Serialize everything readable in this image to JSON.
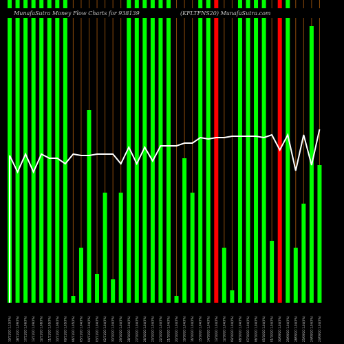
{
  "chart_data": {
    "type": "bar",
    "title_left": "MunafaSutra Money Flow  Charts for 938139",
    "title_right": "(KFLTFNS20)  MunafaSutra.com",
    "colors": {
      "background": "#000000",
      "up": "#00ff00",
      "down": "#ff0000",
      "line": "#ffffff",
      "grid": "#8a4a0a",
      "text": "#c8c8c8"
    },
    "grid": true,
    "ylim": [
      0,
      110
    ],
    "categories": [
      "19/11/20 1.13(0%)",
      "18/11/20 1.09(0%)",
      "17/11/20 1.06(0%)",
      "13/11/20 1.09(0%)",
      "12/11/20 1.08(0%)",
      "11/11/20 1.05(0%)",
      "10/11/20 1.06(0%)",
      "09/11/20 1.05(0%)",
      "06/11/20 1.05(0%)",
      "05/11/20 1.04(0%)",
      "04/11/20 1.04(0%)",
      "03/11/20 1.04(0%)",
      "02/11/20 1.04(0%)",
      "30/10/20 1.04(0%)",
      "29/10/20 1.04(0%)",
      "28/10/20 1.04(0%)",
      "27/10/20 1.04(0%)",
      "26/10/20 1.04(0%)",
      "23/10/20 1.04(0%)",
      "22/10/20 1.04(0%)",
      "21/10/20 1.04(0%)",
      "20/10/20 1.04(0%)",
      "19/10/20 1.04(0%)",
      "16/10/20 1.04(0%)",
      "15/10/20 1.04(0%)",
      "14/10/20 1.04(0%)",
      "13/10/20 1.04(0%)",
      "12/10/20 1.04(0%)",
      "09/10/20 1.04(0%)",
      "08/10/20 1.04(0%)",
      "07/10/20 1.04(0%)",
      "06/10/20 1.04(0%)",
      "05/10/20 1.04(0%)",
      "01/10/20 1.04(0%)",
      "30/09/20 1.04(0%)",
      "29/09/20 1.04(0%)",
      "28/09/20 1.04(0%)",
      "25/09/20 1.04(0%)",
      "24/09/20 1.04(0%)",
      "23/09/20 1.04(0%)"
    ],
    "bar_values": [
      110,
      110,
      110,
      110,
      110,
      110,
      110,
      110,
      2.5,
      20,
      70,
      10.5,
      40,
      8.5,
      40,
      110,
      110,
      110,
      110,
      110,
      110,
      2.5,
      52.5,
      40,
      110,
      110,
      110,
      20,
      4.5,
      110,
      110,
      110,
      110,
      22.5,
      110,
      110,
      20,
      36,
      100.5,
      50
    ],
    "bar_colors": [
      "up",
      "up",
      "up",
      "up",
      "up",
      "up",
      "up",
      "up",
      "up",
      "up",
      "up",
      "up",
      "up",
      "up",
      "up",
      "up",
      "up",
      "up",
      "up",
      "up",
      "up",
      "up",
      "up",
      "up",
      "up",
      "up",
      "down",
      "up",
      "up",
      "up",
      "up",
      "up",
      "up",
      "up",
      "down",
      "up",
      "up",
      "up",
      "up",
      "up"
    ],
    "line_values": [
      53.5,
      47.5,
      54,
      47.5,
      54,
      52.5,
      52.5,
      50.5,
      54,
      53.5,
      53.5,
      54,
      54,
      54,
      50.5,
      56.5,
      50.5,
      56.5,
      51.5,
      57,
      57,
      57,
      58,
      58,
      60,
      59.5,
      60,
      60,
      60.5,
      60.5,
      60.5,
      60.5,
      60,
      61,
      55.5,
      61,
      48,
      61,
      50,
      63
    ]
  }
}
